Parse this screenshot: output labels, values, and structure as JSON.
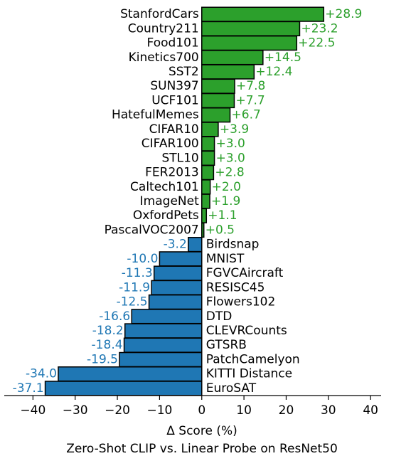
{
  "chart_data": {
    "type": "bar",
    "orientation": "horizontal",
    "categories": [
      "StanfordCars",
      "Country211",
      "Food101",
      "Kinetics700",
      "SST2",
      "SUN397",
      "UCF101",
      "HatefulMemes",
      "CIFAR10",
      "CIFAR100",
      "STL10",
      "FER2013",
      "Caltech101",
      "ImageNet",
      "OxfordPets",
      "PascalVOC2007",
      "Birdsnap",
      "MNIST",
      "FGVCAircraft",
      "RESISC45",
      "Flowers102",
      "DTD",
      "CLEVRCounts",
      "GTSRB",
      "PatchCamelyon",
      "KITTI Distance",
      "EuroSAT"
    ],
    "values": [
      28.9,
      23.2,
      22.5,
      14.5,
      12.4,
      7.8,
      7.7,
      6.7,
      3.9,
      3.0,
      3.0,
      2.8,
      2.0,
      1.9,
      1.1,
      0.5,
      -3.2,
      -10.0,
      -11.3,
      -11.9,
      -12.5,
      -16.6,
      -18.2,
      -18.4,
      -19.5,
      -34.0,
      -37.1
    ],
    "value_labels": [
      "+28.9",
      "+23.2",
      "+22.5",
      "+14.5",
      "+12.4",
      "+7.8",
      "+7.7",
      "+6.7",
      "+3.9",
      "+3.0",
      "+3.0",
      "+2.8",
      "+2.0",
      "+1.9",
      "+1.1",
      "+0.5",
      "-3.2",
      "-10.0",
      "-11.3",
      "-11.9",
      "-12.5",
      "-16.6",
      "-18.2",
      "-18.4",
      "-19.5",
      "-34.0",
      "-37.1"
    ],
    "positive_color": "#2ca02c",
    "negative_color": "#1f77b4",
    "xlim": [
      -46.8,
      42.5
    ],
    "xticks": [
      {
        "value": -40,
        "label": "−40"
      },
      {
        "value": -30,
        "label": "−30"
      },
      {
        "value": -20,
        "label": "−20"
      },
      {
        "value": -10,
        "label": "−10"
      },
      0,
      10,
      20,
      30,
      40
    ],
    "xlabel": "Δ Score (%)",
    "title": "Zero-Shot CLIP vs. Linear Probe on ResNet50"
  }
}
